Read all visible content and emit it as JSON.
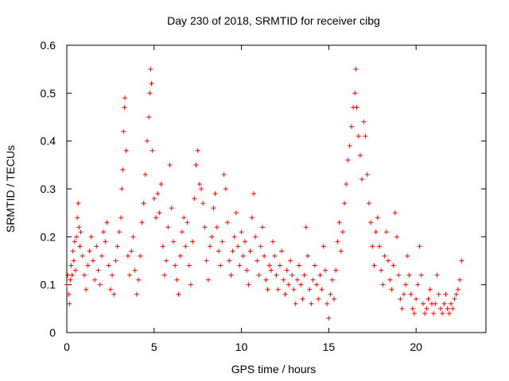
{
  "chart_data": {
    "type": "scatter",
    "title": "Day 230 of 2018, SRMTID for receiver cibg",
    "xlabel": "GPS time / hours",
    "ylabel": "SRMTID / TECUs",
    "xlim": [
      0,
      24
    ],
    "ylim": [
      0,
      0.6
    ],
    "xticks": [
      0,
      5,
      10,
      15,
      20
    ],
    "xtick_labels": [
      "0",
      "5",
      "10",
      "15",
      "20"
    ],
    "yticks": [
      0,
      0.1,
      0.2,
      0.3,
      0.4,
      0.5,
      0.6
    ],
    "ytick_labels": [
      "0",
      "0.1",
      "0.2",
      "0.3",
      "0.4",
      "0.5",
      "0.6"
    ],
    "grid": false,
    "marker": "plus",
    "color": "#ff0000",
    "series": [
      {
        "name": "cibg",
        "points": [
          [
            0.0,
            0.1
          ],
          [
            0.05,
            0.12
          ],
          [
            0.1,
            0.08
          ],
          [
            0.15,
            0.06
          ],
          [
            0.2,
            0.11
          ],
          [
            0.25,
            0.14
          ],
          [
            0.3,
            0.12
          ],
          [
            0.35,
            0.17
          ],
          [
            0.4,
            0.15
          ],
          [
            0.45,
            0.19
          ],
          [
            0.5,
            0.13
          ],
          [
            0.55,
            0.2
          ],
          [
            0.6,
            0.24
          ],
          [
            0.65,
            0.27
          ],
          [
            0.7,
            0.22
          ],
          [
            0.75,
            0.18
          ],
          [
            0.8,
            0.21
          ],
          [
            0.9,
            0.16
          ],
          [
            1.0,
            0.12
          ],
          [
            1.1,
            0.09
          ],
          [
            1.2,
            0.14
          ],
          [
            1.3,
            0.17
          ],
          [
            1.4,
            0.2
          ],
          [
            1.5,
            0.15
          ],
          [
            1.6,
            0.11
          ],
          [
            1.7,
            0.18
          ],
          [
            1.8,
            0.13
          ],
          [
            1.9,
            0.1
          ],
          [
            2.0,
            0.16
          ],
          [
            2.1,
            0.21
          ],
          [
            2.2,
            0.19
          ],
          [
            2.3,
            0.23
          ],
          [
            2.4,
            0.14
          ],
          [
            2.5,
            0.09
          ],
          [
            2.6,
            0.12
          ],
          [
            2.7,
            0.08
          ],
          [
            2.8,
            0.15
          ],
          [
            2.9,
            0.18
          ],
          [
            3.0,
            0.21
          ],
          [
            3.1,
            0.24
          ],
          [
            3.15,
            0.3
          ],
          [
            3.2,
            0.34
          ],
          [
            3.25,
            0.42
          ],
          [
            3.3,
            0.47
          ],
          [
            3.33,
            0.49
          ],
          [
            3.4,
            0.38
          ],
          [
            3.5,
            0.16
          ],
          [
            3.6,
            0.12
          ],
          [
            3.7,
            0.17
          ],
          [
            3.8,
            0.2
          ],
          [
            3.9,
            0.13
          ],
          [
            4.0,
            0.08
          ],
          [
            4.1,
            0.11
          ],
          [
            4.2,
            0.16
          ],
          [
            4.3,
            0.23
          ],
          [
            4.4,
            0.27
          ],
          [
            4.5,
            0.33
          ],
          [
            4.6,
            0.4
          ],
          [
            4.7,
            0.45
          ],
          [
            4.75,
            0.5
          ],
          [
            4.8,
            0.55
          ],
          [
            4.85,
            0.52
          ],
          [
            4.9,
            0.38
          ],
          [
            5.0,
            0.28
          ],
          [
            5.1,
            0.24
          ],
          [
            5.2,
            0.29
          ],
          [
            5.3,
            0.25
          ],
          [
            5.4,
            0.31
          ],
          [
            5.5,
            0.18
          ],
          [
            5.6,
            0.12
          ],
          [
            5.7,
            0.15
          ],
          [
            5.8,
            0.22
          ],
          [
            5.9,
            0.35
          ],
          [
            6.0,
            0.26
          ],
          [
            6.1,
            0.19
          ],
          [
            6.2,
            0.14
          ],
          [
            6.3,
            0.11
          ],
          [
            6.4,
            0.08
          ],
          [
            6.5,
            0.16
          ],
          [
            6.6,
            0.21
          ],
          [
            6.7,
            0.24
          ],
          [
            6.8,
            0.18
          ],
          [
            6.9,
            0.23
          ],
          [
            7.0,
            0.14
          ],
          [
            7.1,
            0.1
          ],
          [
            7.2,
            0.19
          ],
          [
            7.3,
            0.28
          ],
          [
            7.4,
            0.35
          ],
          [
            7.5,
            0.38
          ],
          [
            7.6,
            0.31
          ],
          [
            7.7,
            0.3
          ],
          [
            7.8,
            0.27
          ],
          [
            7.9,
            0.22
          ],
          [
            8.0,
            0.15
          ],
          [
            8.1,
            0.11
          ],
          [
            8.2,
            0.18
          ],
          [
            8.3,
            0.2
          ],
          [
            8.4,
            0.26
          ],
          [
            8.5,
            0.29
          ],
          [
            8.6,
            0.22
          ],
          [
            8.7,
            0.17
          ],
          [
            8.8,
            0.14
          ],
          [
            8.9,
            0.19
          ],
          [
            9.0,
            0.33
          ],
          [
            9.1,
            0.3
          ],
          [
            9.2,
            0.23
          ],
          [
            9.3,
            0.15
          ],
          [
            9.4,
            0.12
          ],
          [
            9.5,
            0.17
          ],
          [
            9.6,
            0.2
          ],
          [
            9.7,
            0.25
          ],
          [
            9.8,
            0.18
          ],
          [
            9.9,
            0.14
          ],
          [
            10.0,
            0.21
          ],
          [
            10.1,
            0.16
          ],
          [
            10.2,
            0.19
          ],
          [
            10.3,
            0.13
          ],
          [
            10.4,
            0.1
          ],
          [
            10.5,
            0.17
          ],
          [
            10.6,
            0.24
          ],
          [
            10.7,
            0.29
          ],
          [
            10.8,
            0.2
          ],
          [
            10.9,
            0.15
          ],
          [
            11.0,
            0.12
          ],
          [
            11.1,
            0.18
          ],
          [
            11.2,
            0.22
          ],
          [
            11.3,
            0.16
          ],
          [
            11.4,
            0.11
          ],
          [
            11.5,
            0.09
          ],
          [
            11.6,
            0.14
          ],
          [
            11.7,
            0.13
          ],
          [
            11.8,
            0.19
          ],
          [
            11.9,
            0.16
          ],
          [
            12.0,
            0.12
          ],
          [
            12.1,
            0.09
          ],
          [
            12.2,
            0.14
          ],
          [
            12.3,
            0.17
          ],
          [
            12.4,
            0.11
          ],
          [
            12.5,
            0.08
          ],
          [
            12.6,
            0.13
          ],
          [
            12.7,
            0.1
          ],
          [
            12.8,
            0.15
          ],
          [
            12.9,
            0.12
          ],
          [
            13.0,
            0.09
          ],
          [
            13.1,
            0.06
          ],
          [
            13.2,
            0.11
          ],
          [
            13.3,
            0.14
          ],
          [
            13.4,
            0.1
          ],
          [
            13.5,
            0.07
          ],
          [
            13.6,
            0.12
          ],
          [
            13.7,
            0.22
          ],
          [
            13.8,
            0.16
          ],
          [
            13.9,
            0.09
          ],
          [
            14.0,
            0.06
          ],
          [
            14.1,
            0.11
          ],
          [
            14.2,
            0.14
          ],
          [
            14.3,
            0.1
          ],
          [
            14.4,
            0.07
          ],
          [
            14.5,
            0.12
          ],
          [
            14.6,
            0.09
          ],
          [
            14.7,
            0.18
          ],
          [
            14.8,
            0.13
          ],
          [
            14.9,
            0.06
          ],
          [
            15.0,
            0.03
          ],
          [
            15.1,
            0.08
          ],
          [
            15.2,
            0.11
          ],
          [
            15.3,
            0.07
          ],
          [
            15.4,
            0.13
          ],
          [
            15.5,
            0.19
          ],
          [
            15.6,
            0.23
          ],
          [
            15.7,
            0.17
          ],
          [
            15.8,
            0.21
          ],
          [
            15.9,
            0.27
          ],
          [
            16.0,
            0.31
          ],
          [
            16.1,
            0.36
          ],
          [
            16.2,
            0.39
          ],
          [
            16.3,
            0.43
          ],
          [
            16.4,
            0.47
          ],
          [
            16.5,
            0.5
          ],
          [
            16.55,
            0.55
          ],
          [
            16.6,
            0.47
          ],
          [
            16.7,
            0.41
          ],
          [
            16.8,
            0.37
          ],
          [
            16.9,
            0.32
          ],
          [
            17.0,
            0.44
          ],
          [
            17.1,
            0.41
          ],
          [
            17.2,
            0.33
          ],
          [
            17.3,
            0.27
          ],
          [
            17.4,
            0.23
          ],
          [
            17.5,
            0.18
          ],
          [
            17.6,
            0.14
          ],
          [
            17.7,
            0.21
          ],
          [
            17.8,
            0.24
          ],
          [
            17.9,
            0.18
          ],
          [
            18.0,
            0.13
          ],
          [
            18.1,
            0.1
          ],
          [
            18.2,
            0.16
          ],
          [
            18.3,
            0.21
          ],
          [
            18.4,
            0.15
          ],
          [
            18.5,
            0.11
          ],
          [
            18.6,
            0.09
          ],
          [
            18.7,
            0.14
          ],
          [
            18.8,
            0.25
          ],
          [
            18.9,
            0.2
          ],
          [
            19.0,
            0.12
          ],
          [
            19.1,
            0.07
          ],
          [
            19.2,
            0.05
          ],
          [
            19.3,
            0.08
          ],
          [
            19.4,
            0.1
          ],
          [
            19.5,
            0.16
          ],
          [
            19.6,
            0.12
          ],
          [
            19.7,
            0.08
          ],
          [
            19.8,
            0.05
          ],
          [
            19.9,
            0.04
          ],
          [
            20.0,
            0.07
          ],
          [
            20.1,
            0.1
          ],
          [
            20.2,
            0.18
          ],
          [
            20.3,
            0.12
          ],
          [
            20.4,
            0.06
          ],
          [
            20.5,
            0.04
          ],
          [
            20.6,
            0.05
          ],
          [
            20.7,
            0.07
          ],
          [
            20.8,
            0.09
          ],
          [
            20.9,
            0.06
          ],
          [
            21.0,
            0.04
          ],
          [
            21.1,
            0.06
          ],
          [
            21.2,
            0.12
          ],
          [
            21.3,
            0.08
          ],
          [
            21.4,
            0.05
          ],
          [
            21.5,
            0.04
          ],
          [
            21.6,
            0.06
          ],
          [
            21.7,
            0.08
          ],
          [
            21.8,
            0.05
          ],
          [
            21.9,
            0.04
          ],
          [
            22.0,
            0.06
          ],
          [
            22.1,
            0.05
          ],
          [
            22.2,
            0.07
          ],
          [
            22.3,
            0.08
          ],
          [
            22.4,
            0.09
          ],
          [
            22.5,
            0.11
          ],
          [
            22.6,
            0.15
          ]
        ]
      }
    ]
  }
}
